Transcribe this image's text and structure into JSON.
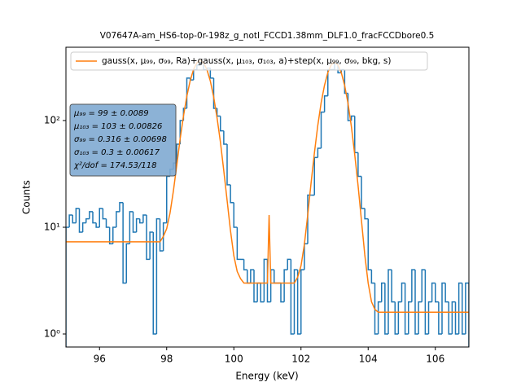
{
  "chart_data": {
    "type": "histogram",
    "title": "V07647A-am_HS6-top-0r-198z_g_notl_FCCD1.38mm_DLF1.0_fracFCCDbore0.5",
    "xlabel": "Energy (keV)",
    "ylabel": "Counts",
    "xlim": [
      95,
      107
    ],
    "ylim": [
      0.755,
      486
    ],
    "log_y": true,
    "grid": false,
    "legend": "upper left",
    "xticks": [
      96,
      98,
      100,
      102,
      104,
      106
    ],
    "yticks": [
      {
        "value": 1,
        "label": "10⁰"
      },
      {
        "value": 10,
        "label": "10¹"
      },
      {
        "value": 100,
        "label": "10²"
      }
    ],
    "color": "#1f77b4",
    "bins": [
      95.0,
      95.1,
      95.2,
      95.3,
      95.4,
      95.5,
      95.6,
      95.7,
      95.8,
      95.9,
      96.0,
      96.1,
      96.2,
      96.3,
      96.4,
      96.5,
      96.6,
      96.7,
      96.8,
      96.9,
      97.0,
      97.1,
      97.2,
      97.3,
      97.4,
      97.5,
      97.6,
      97.7,
      97.8,
      97.9,
      98.0,
      98.1,
      98.2,
      98.3,
      98.4,
      98.5,
      98.6,
      98.7,
      98.8,
      98.9,
      99.0,
      99.1,
      99.2,
      99.3,
      99.4,
      99.5,
      99.6,
      99.7,
      99.8,
      99.9,
      100.0,
      100.1,
      100.2,
      100.3,
      100.4,
      100.5,
      100.6,
      100.7,
      100.8,
      100.9,
      101.0,
      101.1,
      101.2,
      101.3,
      101.4,
      101.5,
      101.6,
      101.7,
      101.8,
      101.9,
      102.0,
      102.1,
      102.2,
      102.3,
      102.4,
      102.5,
      102.6,
      102.7,
      102.8,
      102.9,
      103.0,
      103.1,
      103.2,
      103.3,
      103.4,
      103.5,
      103.6,
      103.7,
      103.8,
      103.9,
      104.0,
      104.1,
      104.2,
      104.3,
      104.4,
      104.5,
      104.6,
      104.7,
      104.8,
      104.9,
      105.0,
      105.1,
      105.2,
      105.3,
      105.4,
      105.5,
      105.6,
      105.7,
      105.8,
      105.9,
      106.0,
      106.1,
      106.2,
      106.3,
      106.4,
      106.5,
      106.6,
      106.7,
      106.8,
      106.9,
      107.0
    ],
    "values": [
      10,
      13,
      11,
      15,
      9,
      11,
      12,
      14,
      11,
      10,
      15,
      12,
      10,
      7,
      10,
      14,
      17,
      3,
      7,
      14,
      9,
      12,
      11,
      13,
      5,
      9,
      1,
      12,
      6,
      11,
      30,
      35,
      40,
      60,
      100,
      130,
      250,
      240,
      300,
      330,
      350,
      300,
      310,
      250,
      130,
      110,
      80,
      60,
      25,
      17,
      10,
      5,
      5,
      4,
      3,
      4,
      2,
      3,
      2,
      5,
      2,
      4,
      3,
      3,
      2,
      4,
      5,
      1,
      4,
      1,
      4,
      7,
      20,
      20,
      45,
      55,
      120,
      170,
      300,
      300,
      350,
      280,
      300,
      180,
      100,
      110,
      50,
      30,
      15,
      12,
      4,
      3,
      1,
      2,
      3,
      1,
      4,
      2,
      1,
      2,
      3,
      1,
      2,
      4,
      1,
      2,
      4,
      1,
      2,
      3,
      2,
      1,
      3,
      2,
      1,
      2,
      1,
      3,
      1,
      3
    ],
    "fit": {
      "name": "gauss(x, μ₉₉, σ₉₉, Ra)+gauss(x, μ₁₀₃, σ₁₀₃, a)+step(x, μ₉₉, σ₉₉, bkg, s)",
      "color": "#ff7f0e",
      "x": [
        95,
        97.8,
        97.9,
        98.0,
        98.1,
        98.2,
        98.3,
        98.4,
        98.5,
        98.6,
        98.7,
        98.8,
        98.9,
        99.0,
        99.1,
        99.2,
        99.3,
        99.4,
        99.5,
        99.6,
        99.7,
        99.8,
        99.9,
        100.0,
        100.1,
        100.2,
        100.3,
        101.0,
        101.05,
        101.1,
        101.8,
        101.9,
        102.0,
        102.1,
        102.2,
        102.3,
        102.4,
        102.5,
        102.6,
        102.7,
        102.8,
        102.9,
        103.0,
        103.1,
        103.2,
        103.3,
        103.4,
        103.5,
        103.6,
        103.7,
        103.8,
        103.9,
        104.0,
        104.1,
        104.2,
        104.3,
        107
      ],
      "values": [
        7.3,
        7.3,
        8.2,
        9.7,
        13.6,
        21.9,
        38,
        67,
        110,
        169,
        236,
        301,
        348,
        365,
        347,
        299,
        234,
        166,
        106,
        63,
        34,
        17.8,
        9.3,
        5.4,
        3.85,
        3.3,
        3.0,
        3.0,
        13,
        3.0,
        3.0,
        3.4,
        4.35,
        6.9,
        13,
        26,
        50,
        90,
        147,
        214,
        282,
        333,
        352,
        332,
        281,
        213,
        145,
        88,
        48,
        24.5,
        11.6,
        5.5,
        3.0,
        2.0,
        1.7,
        1.6,
        1.6
      ]
    },
    "annotations": [
      "μ₉₉ = 99 ± 0.0089",
      "μ₁₀₃ = 103 ± 0.00826",
      "σ₉₉ = 0.316 ± 0.00698",
      "σ₁₀₃ = 0.3 ± 0.00617",
      "χ²/dof = 174.53/118"
    ]
  }
}
